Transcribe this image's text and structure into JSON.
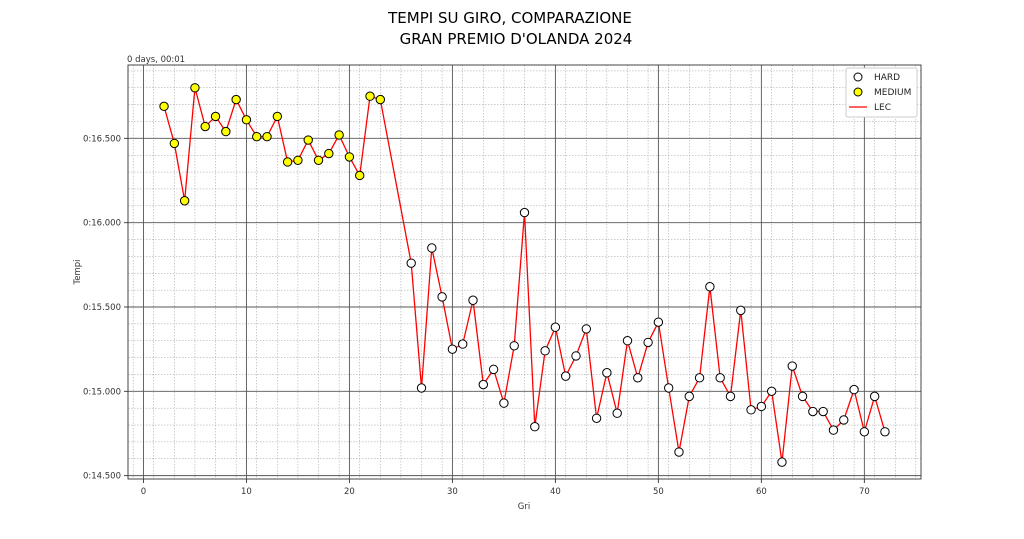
{
  "chart_data": {
    "type": "line",
    "title_lines": [
      "TEMPI SU GIRO, COMPARAZIONE",
      "GRAN PREMIO D'OLANDA 2024"
    ],
    "xlabel": "Gri",
    "ylabel": "Tempi",
    "offset_text": "0 days, 00:01",
    "xlim": [
      -1.5,
      75.5
    ],
    "ylim": [
      14.48,
      16.935
    ],
    "x_ticks": [
      0,
      10,
      20,
      30,
      40,
      50,
      60,
      70
    ],
    "x_tick_labels": [
      "0",
      "10",
      "20",
      "30",
      "40",
      "50",
      "60",
      "70"
    ],
    "y_ticks": [
      14.5,
      15.0,
      15.5,
      16.0,
      16.5
    ],
    "y_tick_labels": [
      "0:14.500",
      "0:15.000",
      "0:15.500",
      "0:16.000",
      "0:16.500"
    ],
    "grid": true,
    "legend_position": "top-right",
    "legend": [
      {
        "label": "HARD",
        "kind": "marker",
        "color": "#ffffff"
      },
      {
        "label": "MEDIUM",
        "kind": "marker",
        "color": "#ffff00"
      },
      {
        "label": "LEC",
        "kind": "line",
        "color": "#ff0000"
      }
    ],
    "line_series": {
      "name": "LEC",
      "color": "#ff0000",
      "x": [
        2,
        3,
        4,
        5,
        6,
        7,
        8,
        9,
        10,
        11,
        12,
        13,
        14,
        15,
        16,
        17,
        18,
        19,
        20,
        21,
        22,
        23,
        26,
        27,
        28,
        29,
        30,
        31,
        32,
        33,
        34,
        35,
        36,
        37,
        38,
        39,
        40,
        41,
        42,
        43,
        44,
        45,
        46,
        47,
        48,
        49,
        50,
        51,
        52,
        53,
        54,
        55,
        56,
        57,
        58,
        59,
        60,
        61,
        62,
        63,
        64,
        65,
        66,
        67,
        68,
        69,
        70,
        71,
        72
      ],
      "y": [
        16.69,
        16.47,
        16.13,
        16.8,
        16.57,
        16.63,
        16.54,
        16.73,
        16.61,
        16.51,
        16.51,
        16.63,
        16.36,
        16.37,
        16.49,
        16.37,
        16.41,
        16.52,
        16.39,
        16.28,
        16.75,
        16.73,
        15.76,
        15.02,
        15.85,
        15.56,
        15.25,
        15.28,
        15.54,
        15.04,
        15.13,
        14.93,
        15.27,
        16.06,
        14.79,
        15.24,
        15.38,
        15.09,
        15.21,
        15.37,
        14.84,
        15.11,
        14.87,
        15.3,
        15.08,
        15.29,
        15.41,
        15.02,
        14.64,
        14.97,
        15.08,
        15.62,
        15.08,
        14.97,
        15.48,
        14.89,
        14.91,
        15.0,
        14.58,
        15.15,
        14.97,
        14.88,
        14.88,
        14.77,
        14.83,
        15.01,
        14.76,
        14.97,
        14.76
      ]
    },
    "marker_series": [
      {
        "name": "MEDIUM",
        "color": "#ffff00",
        "x": [
          2,
          3,
          4,
          5,
          6,
          7,
          8,
          9,
          10,
          11,
          12,
          13,
          14,
          15,
          16,
          17,
          18,
          19,
          20,
          21,
          22,
          23
        ],
        "y": [
          16.69,
          16.47,
          16.13,
          16.8,
          16.57,
          16.63,
          16.54,
          16.73,
          16.61,
          16.51,
          16.51,
          16.63,
          16.36,
          16.37,
          16.49,
          16.37,
          16.41,
          16.52,
          16.39,
          16.28,
          16.75,
          16.73
        ]
      },
      {
        "name": "HARD",
        "color": "#ffffff",
        "x": [
          26,
          27,
          28,
          29,
          30,
          31,
          32,
          33,
          34,
          35,
          36,
          37,
          38,
          39,
          40,
          41,
          42,
          43,
          44,
          45,
          46,
          47,
          48,
          49,
          50,
          51,
          52,
          53,
          54,
          55,
          56,
          57,
          58,
          59,
          60,
          61,
          62,
          63,
          64,
          65,
          66,
          67,
          68,
          69,
          70,
          71,
          72
        ],
        "y": [
          15.76,
          15.02,
          15.85,
          15.56,
          15.25,
          15.28,
          15.54,
          15.04,
          15.13,
          14.93,
          15.27,
          16.06,
          14.79,
          15.24,
          15.38,
          15.09,
          15.21,
          15.37,
          14.84,
          15.11,
          14.87,
          15.3,
          15.08,
          15.29,
          15.41,
          15.02,
          14.64,
          14.97,
          15.08,
          15.62,
          15.08,
          14.97,
          15.48,
          14.89,
          14.91,
          15.0,
          14.58,
          15.15,
          14.97,
          14.88,
          14.88,
          14.77,
          14.83,
          15.01,
          14.76,
          14.97,
          14.76
        ]
      }
    ]
  }
}
